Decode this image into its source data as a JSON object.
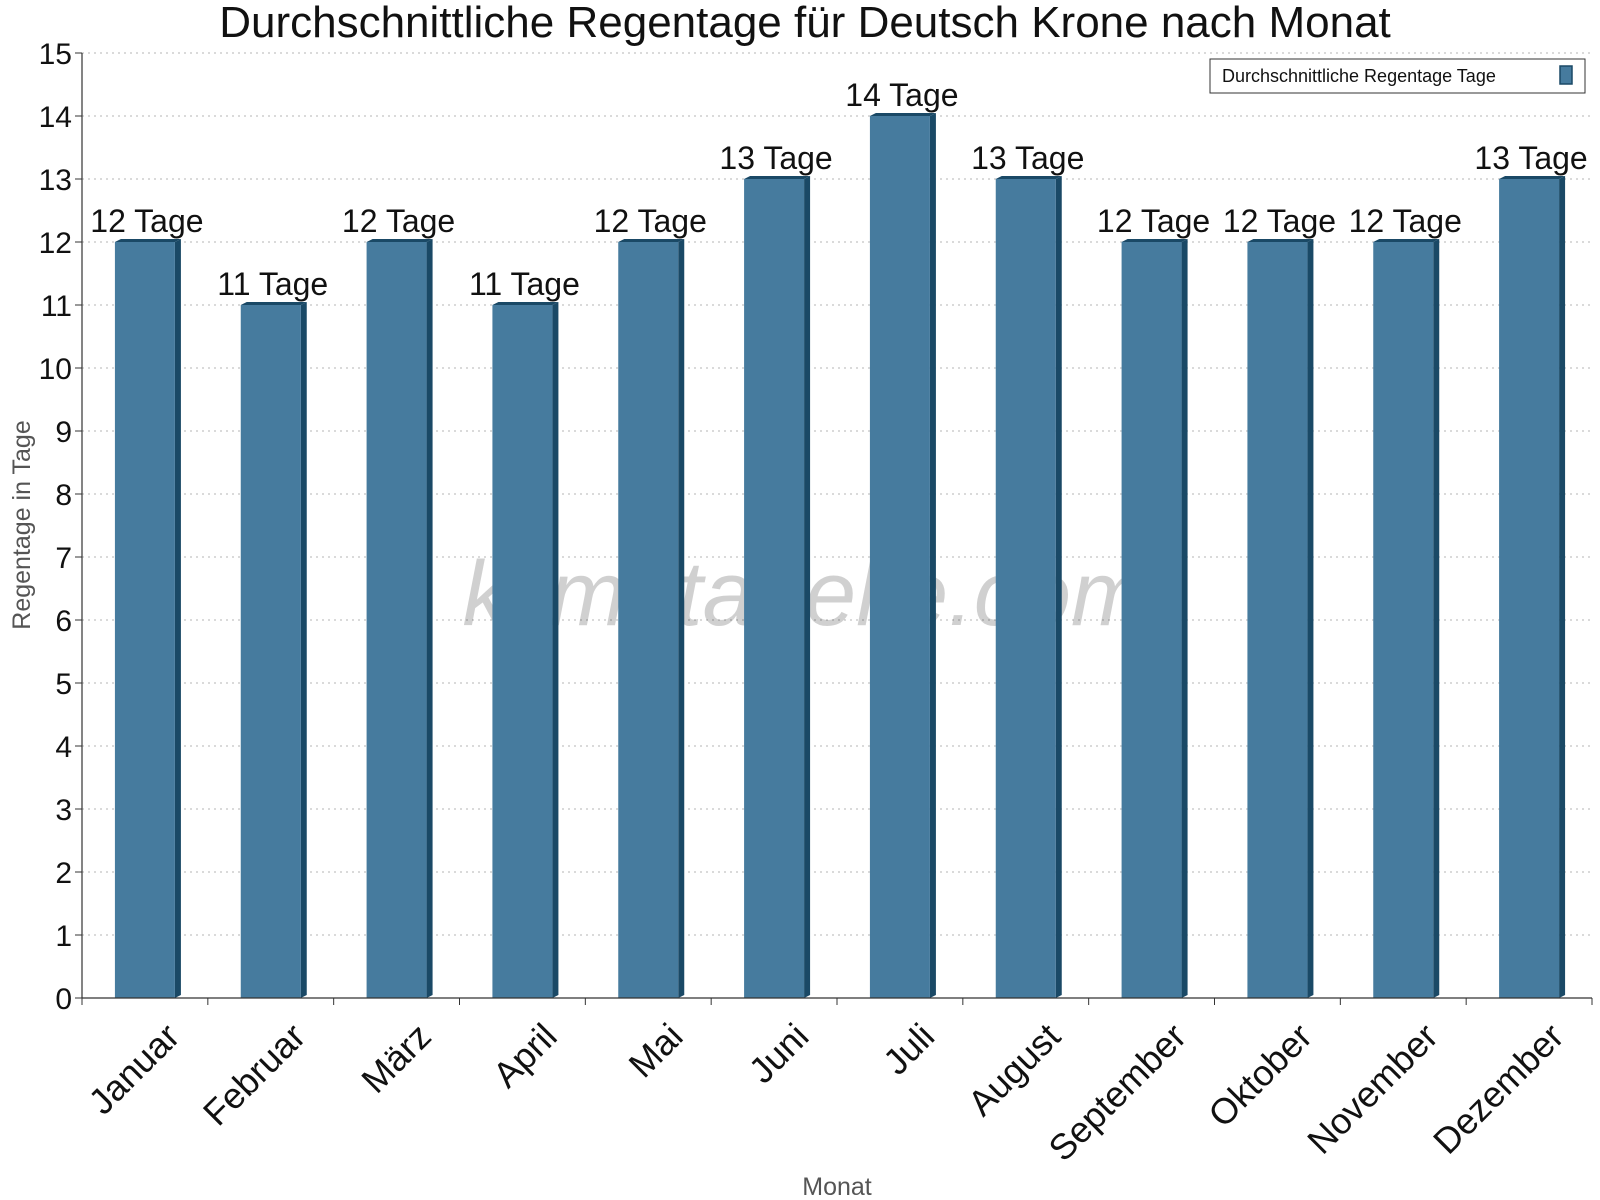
{
  "chart_data": {
    "type": "bar",
    "title": "Durchschnittliche Regentage für Deutsch Krone nach Monat",
    "xlabel": "Monat",
    "ylabel": "Regentage in Tage",
    "ylim": [
      0,
      15
    ],
    "yticks": [
      "0",
      "1",
      "2",
      "3",
      "4",
      "5",
      "6",
      "7",
      "8",
      "9",
      "10",
      "11",
      "12",
      "13",
      "14",
      "15"
    ],
    "categories": [
      "Januar",
      "Februar",
      "März",
      "April",
      "Mai",
      "Juni",
      "Juli",
      "August",
      "September",
      "Oktober",
      "November",
      "Dezember"
    ],
    "series": [
      {
        "name": "Durchschnittliche Regentage Tage",
        "values": [
          12,
          11,
          12,
          11,
          12,
          13,
          14,
          13,
          12,
          12,
          12,
          13
        ],
        "labels": [
          "12 Tage",
          "11 Tage",
          "12 Tage",
          "11 Tage",
          "12 Tage",
          "13 Tage",
          "14 Tage",
          "13 Tage",
          "12 Tage",
          "12 Tage",
          "12 Tage",
          "13 Tage"
        ],
        "color": "#467b9e"
      }
    ],
    "grid": true,
    "legend_position": "top-right",
    "watermark": "klimatabelle.com"
  }
}
